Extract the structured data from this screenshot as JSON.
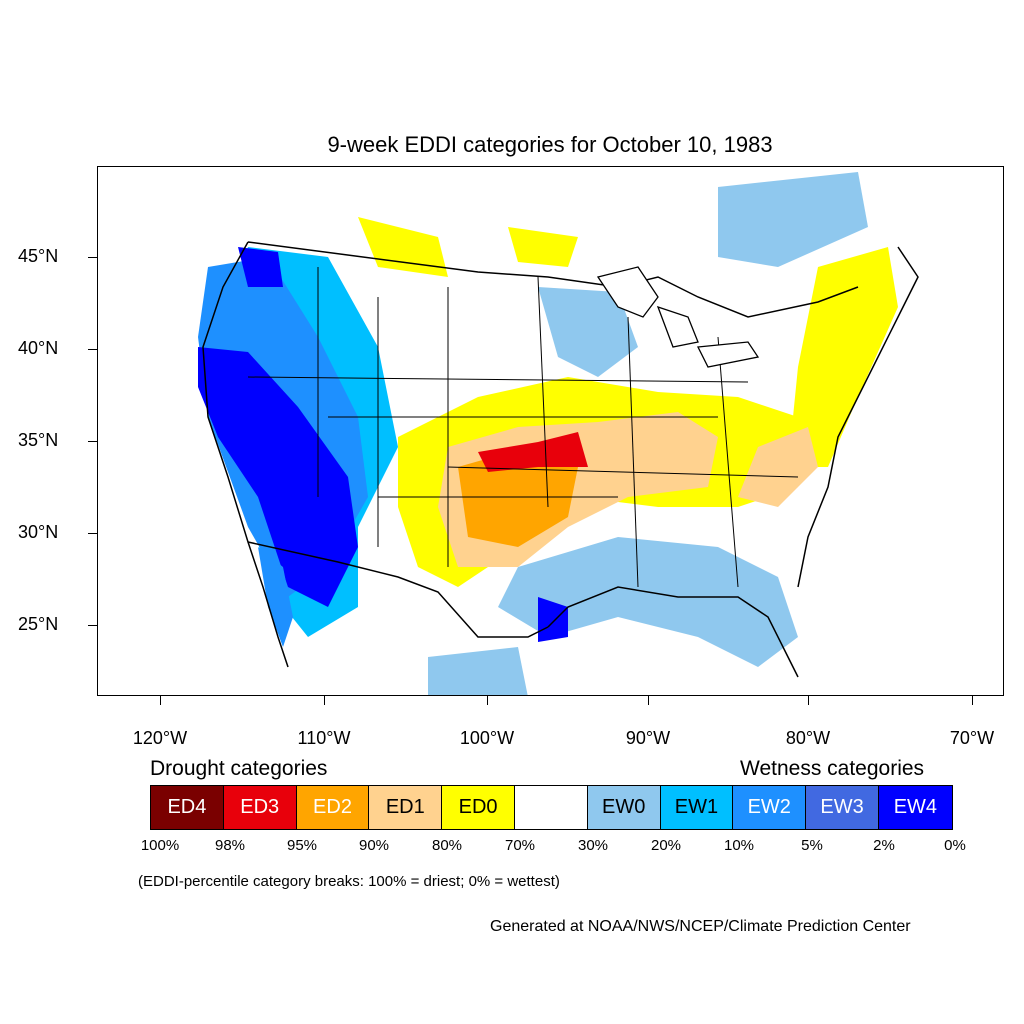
{
  "title": "9-week EDDI categories for October 10, 1983",
  "map": {
    "lat_labels": [
      "45°N",
      "40°N",
      "35°N",
      "30°N",
      "25°N"
    ],
    "lon_labels": [
      "120°W",
      "110°W",
      "100°W",
      "90°W",
      "80°W",
      "70°W"
    ]
  },
  "legend": {
    "drought_heading": "Drought categories",
    "wetness_heading": "Wetness categories",
    "categories": [
      {
        "label": "ED4",
        "color": "#7a0000",
        "text_color": "#ffffff"
      },
      {
        "label": "ED3",
        "color": "#e8000b",
        "text_color": "#ffffff"
      },
      {
        "label": "ED2",
        "color": "#ffa500",
        "text_color": "#ffffff"
      },
      {
        "label": "ED1",
        "color": "#ffd28f",
        "text_color": "#000000"
      },
      {
        "label": "ED0",
        "color": "#ffff00",
        "text_color": "#000000"
      },
      {
        "label": "",
        "color": "#ffffff",
        "text_color": "#000000"
      },
      {
        "label": "EW0",
        "color": "#8fc8ee",
        "text_color": "#000000"
      },
      {
        "label": "EW1",
        "color": "#00bfff",
        "text_color": "#000000"
      },
      {
        "label": "EW2",
        "color": "#1e90ff",
        "text_color": "#ffffff"
      },
      {
        "label": "EW3",
        "color": "#4169e1",
        "text_color": "#ffffff"
      },
      {
        "label": "EW4",
        "color": "#0000ff",
        "text_color": "#ffffff"
      }
    ],
    "percentiles": [
      "100%",
      "98%",
      "95%",
      "90%",
      "80%",
      "70%",
      "30%",
      "20%",
      "10%",
      "5%",
      "2%",
      "0%"
    ]
  },
  "note": "(EDDI-percentile category breaks: 100% = driest; 0% = wettest)",
  "credit": "Generated at NOAA/NWS/NCEP/Climate Prediction Center"
}
